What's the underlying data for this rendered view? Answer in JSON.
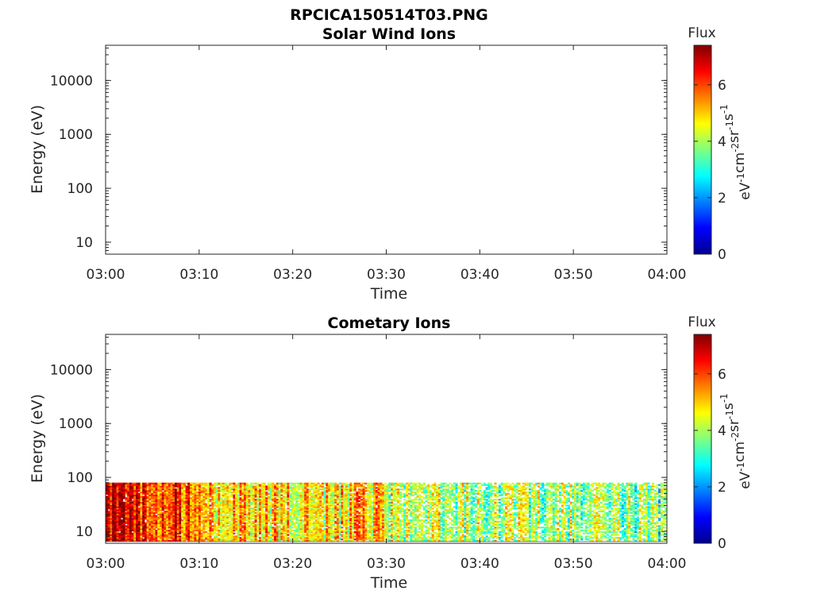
{
  "figure": {
    "title": "RPCICA150514T03.PNG"
  },
  "colorbar_scale": {
    "colors": [
      "#00008f",
      "#0000ff",
      "#0080ff",
      "#00ffff",
      "#80ff80",
      "#ffff00",
      "#ff8000",
      "#ff0000",
      "#800000"
    ]
  },
  "chart_data": [
    {
      "type": "heatmap",
      "title": "Solar Wind Ions",
      "xlabel": "Time",
      "ylabel": "Energy (eV)",
      "x_ticks": [
        "03:00",
        "03:10",
        "03:20",
        "03:30",
        "03:40",
        "03:50",
        "04:00"
      ],
      "x_range": [
        "03:00",
        "04:00"
      ],
      "y_scale": "log",
      "y_ticks": [
        "10",
        "100",
        "1000",
        "10000"
      ],
      "y_range": [
        6,
        45000
      ],
      "colorbar": {
        "title": "Flux",
        "label": "eV-1cm-2sr-1s-1",
        "ticks": [
          "0",
          "2",
          "4",
          "6"
        ],
        "range": [
          0,
          7.4
        ]
      },
      "data": []
    },
    {
      "type": "heatmap",
      "title": "Cometary Ions",
      "xlabel": "Time",
      "ylabel": "Energy (eV)",
      "x_ticks": [
        "03:00",
        "03:10",
        "03:20",
        "03:30",
        "03:40",
        "03:50",
        "04:00"
      ],
      "x_range": [
        "03:00",
        "04:00"
      ],
      "y_scale": "log",
      "y_ticks": [
        "10",
        "100",
        "1000",
        "10000"
      ],
      "y_range": [
        6,
        45000
      ],
      "colorbar": {
        "title": "Flux",
        "label": "eV-1cm-2sr-1s-1",
        "ticks": [
          "0",
          "2",
          "4",
          "6"
        ],
        "range": [
          0,
          7.4
        ]
      },
      "energy_band_eV": [
        6.5,
        80
      ],
      "flux_by_time": [
        {
          "start": "03:00",
          "end": "03:03",
          "flux": 6.8
        },
        {
          "start": "03:03",
          "end": "03:08",
          "flux": 6.3
        },
        {
          "start": "03:08",
          "end": "03:10",
          "flux": 5.9
        },
        {
          "start": "03:10",
          "end": "03:15",
          "flux": 5.3
        },
        {
          "start": "03:15",
          "end": "03:20",
          "flux": 4.9
        },
        {
          "start": "03:20",
          "end": "03:25",
          "flux": 4.7
        },
        {
          "start": "03:25",
          "end": "03:30",
          "flux": 5.1
        },
        {
          "start": "03:30",
          "end": "03:35",
          "flux": 4.2
        },
        {
          "start": "03:35",
          "end": "03:40",
          "flux": 4.0
        },
        {
          "start": "03:40",
          "end": "03:45",
          "flux": 3.9
        },
        {
          "start": "03:45",
          "end": "03:50",
          "flux": 4.0
        },
        {
          "start": "03:50",
          "end": "03:55",
          "flux": 3.8
        },
        {
          "start": "03:55",
          "end": "04:00",
          "flux": 3.6
        }
      ]
    }
  ]
}
